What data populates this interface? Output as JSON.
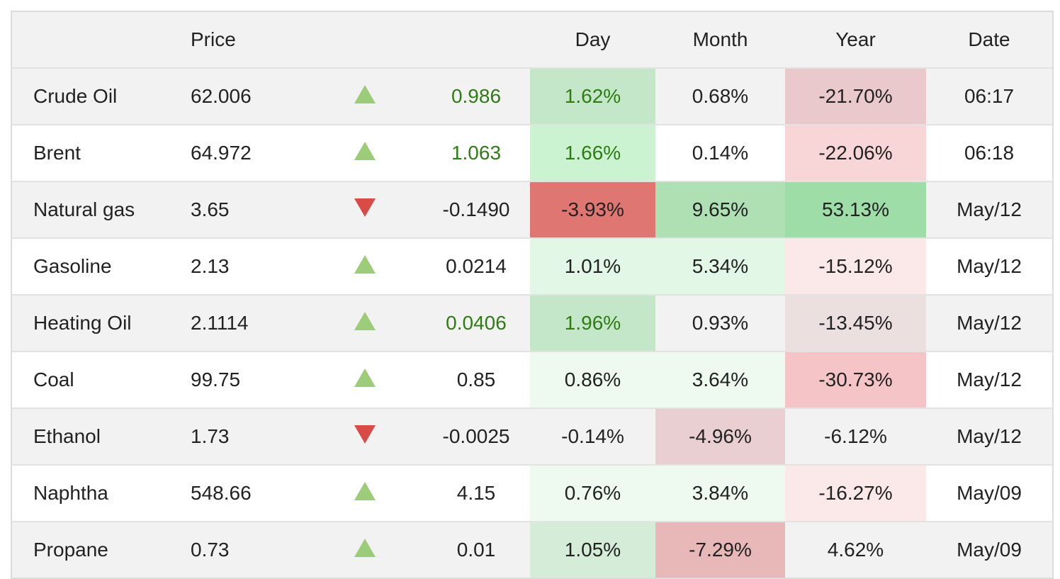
{
  "headers": {
    "name": "",
    "price": "Price",
    "arrow": "",
    "change": "",
    "day": "Day",
    "month": "Month",
    "year": "Year",
    "date": "Date"
  },
  "colors": {
    "up_arrow": "#9ccc7a",
    "down_arrow": "#d94b46",
    "positive_change_text": "#2e7d12"
  },
  "rows": [
    {
      "name": "Crude Oil",
      "price": "62.006",
      "direction": "up",
      "change": "0.986",
      "change_green": true,
      "day": "1.62%",
      "month": "0.68%",
      "year": "-21.70%",
      "date": "06:17",
      "day_bg": "#c4e6c9",
      "month_bg": "",
      "year_bg": "#e9c9cb"
    },
    {
      "name": "Brent",
      "price": "64.972",
      "direction": "up",
      "change": "1.063",
      "change_green": true,
      "day": "1.66%",
      "month": "0.14%",
      "year": "-22.06%",
      "date": "06:18",
      "day_bg": "#cbf3d1",
      "month_bg": "",
      "year_bg": "#f8d6d8"
    },
    {
      "name": "Natural gas",
      "price": "3.65",
      "direction": "down",
      "change": "-0.1490",
      "change_green": false,
      "day": "-3.93%",
      "month": "9.65%",
      "year": "53.13%",
      "date": "May/12",
      "day_bg": "#e07672",
      "month_bg": "#aee0b4",
      "year_bg": "#9edca8"
    },
    {
      "name": "Gasoline",
      "price": "2.13",
      "direction": "up",
      "change": "0.0214",
      "change_green": false,
      "day": "1.01%",
      "month": "5.34%",
      "year": "-15.12%",
      "date": "May/12",
      "day_bg": "#e2f7e5",
      "month_bg": "#e2f7e5",
      "year_bg": "#fbe8e9"
    },
    {
      "name": "Heating Oil",
      "price": "2.1114",
      "direction": "up",
      "change": "0.0406",
      "change_green": true,
      "day": "1.96%",
      "month": "0.93%",
      "year": "-13.45%",
      "date": "May/12",
      "day_bg": "#c4e6c9",
      "month_bg": "",
      "year_bg": "#ebdfe0"
    },
    {
      "name": "Coal",
      "price": "99.75",
      "direction": "up",
      "change": "0.85",
      "change_green": false,
      "day": "0.86%",
      "month": "3.64%",
      "year": "-30.73%",
      "date": "May/12",
      "day_bg": "#eefaf0",
      "month_bg": "#eefaf0",
      "year_bg": "#f5c4c6"
    },
    {
      "name": "Ethanol",
      "price": "1.73",
      "direction": "down",
      "change": "-0.0025",
      "change_green": false,
      "day": "-0.14%",
      "month": "-4.96%",
      "year": "-6.12%",
      "date": "May/12",
      "day_bg": "",
      "month_bg": "#e9cfd1",
      "year_bg": ""
    },
    {
      "name": "Naphtha",
      "price": "548.66",
      "direction": "up",
      "change": "4.15",
      "change_green": false,
      "day": "0.76%",
      "month": "3.84%",
      "year": "-16.27%",
      "date": "May/09",
      "day_bg": "#eefaf0",
      "month_bg": "#eefaf0",
      "year_bg": "#fbe8e9"
    },
    {
      "name": "Propane",
      "price": "0.73",
      "direction": "up",
      "change": "0.01",
      "change_green": false,
      "day": "1.05%",
      "month": "-7.29%",
      "year": "4.62%",
      "date": "May/09",
      "day_bg": "#d5ecd8",
      "month_bg": "#e8b8b9",
      "year_bg": ""
    }
  ]
}
